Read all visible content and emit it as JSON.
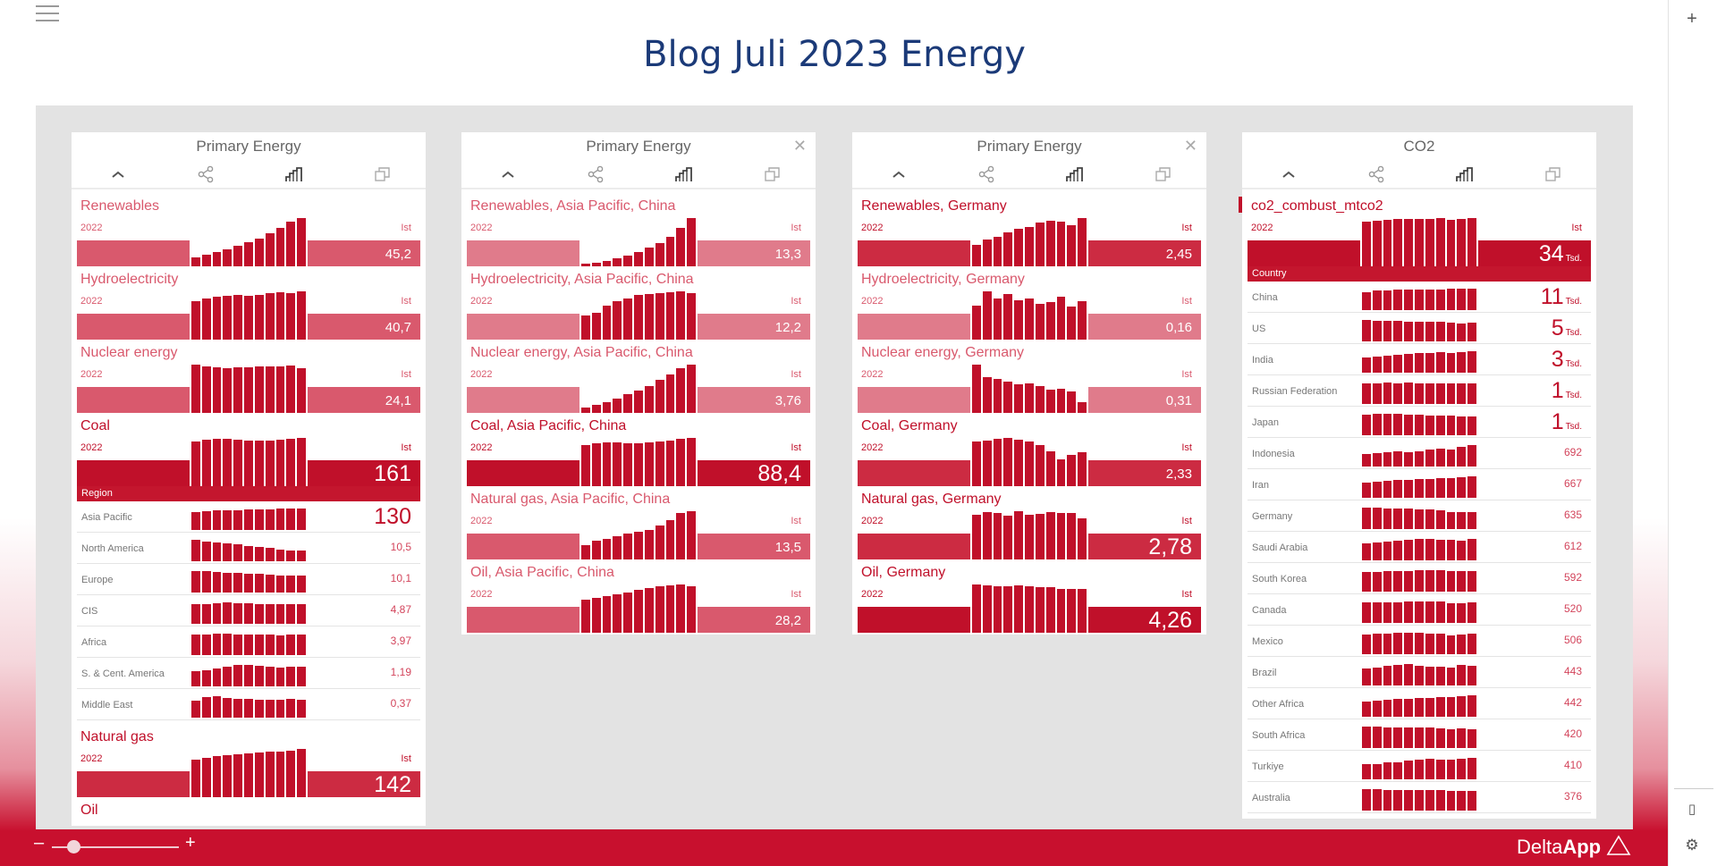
{
  "app": {
    "title": "Blog Juli 2023 Energy",
    "logo_light": "Delta",
    "logo_bold": "App",
    "zoom_minus": "–",
    "zoom_plus": "+",
    "zoom_level": 0.17,
    "rail_add": "+",
    "rail_panel": "▯",
    "rail_settings": "⚙"
  },
  "colors": {
    "light": "#d9596d",
    "mid": "#cc2b42",
    "strong": "#c0102a",
    "faint": "#e07b8b",
    "spark": "#c0102a"
  },
  "cards": [
    {
      "title": "Primary Energy",
      "closable": false,
      "kpis": [
        {
          "label": "Renewables",
          "year": "2022",
          "ist": "Ist",
          "value": "45,2",
          "big": false,
          "tone": "light",
          "spark": [
            0.18,
            0.25,
            0.3,
            0.35,
            0.42,
            0.5,
            0.58,
            0.68,
            0.8,
            0.92,
            1.0
          ]
        },
        {
          "label": "Hydroelectricity",
          "year": "2022",
          "ist": "Ist",
          "value": "40,7",
          "big": false,
          "tone": "light",
          "spark": [
            0.8,
            0.85,
            0.88,
            0.9,
            0.92,
            0.9,
            0.93,
            0.96,
            0.98,
            0.97,
            1.0
          ]
        },
        {
          "label": "Nuclear energy",
          "year": "2022",
          "ist": "Ist",
          "value": "24,1",
          "big": false,
          "tone": "light",
          "spark": [
            1.0,
            0.96,
            0.94,
            0.93,
            0.94,
            0.94,
            0.96,
            0.97,
            0.96,
            0.98,
            0.92
          ]
        },
        {
          "label": "Coal",
          "year": "2022",
          "ist": "Ist",
          "value": "161",
          "big": true,
          "tone": "strong",
          "spark": [
            0.92,
            0.96,
            0.98,
            0.99,
            0.97,
            0.95,
            0.94,
            0.95,
            0.96,
            0.98,
            1.0
          ]
        }
      ],
      "section": "Region",
      "rows": [
        {
          "label": "Asia Pacific",
          "value": "130",
          "big": true,
          "spark": [
            0.85,
            0.88,
            0.9,
            0.92,
            0.93,
            0.94,
            0.95,
            0.97,
            0.98,
            0.99,
            1.0
          ]
        },
        {
          "label": "North America",
          "value": "10,5",
          "spark": [
            1.0,
            0.9,
            0.88,
            0.85,
            0.78,
            0.72,
            0.68,
            0.62,
            0.55,
            0.5,
            0.48
          ]
        },
        {
          "label": "Europe",
          "value": "10,1",
          "spark": [
            1.0,
            0.98,
            0.96,
            0.92,
            0.9,
            0.88,
            0.86,
            0.84,
            0.8,
            0.78,
            0.8
          ]
        },
        {
          "label": "CIS",
          "value": "4,87",
          "spark": [
            0.9,
            0.92,
            0.95,
            1.0,
            0.96,
            0.94,
            0.93,
            0.9,
            0.92,
            0.93,
            0.91
          ]
        },
        {
          "label": "Africa",
          "value": "3,97",
          "spark": [
            0.95,
            0.96,
            0.98,
            1.0,
            0.97,
            0.96,
            0.95,
            0.94,
            0.93,
            0.95,
            0.94
          ]
        },
        {
          "label": "S. & Cent. America",
          "value": "1,19",
          "spark": [
            0.7,
            0.75,
            0.85,
            0.92,
            0.98,
            1.0,
            0.95,
            0.9,
            0.88,
            0.92,
            0.9
          ]
        },
        {
          "label": "Middle East",
          "value": "0,37",
          "spark": [
            0.8,
            0.95,
            1.0,
            0.9,
            0.88,
            0.86,
            0.85,
            0.84,
            0.82,
            0.86,
            0.85
          ]
        }
      ],
      "kpis_after": [
        {
          "label": "Natural gas",
          "year": "2022",
          "ist": "Ist",
          "value": "142",
          "big": true,
          "tone": "mid",
          "spark": [
            0.78,
            0.82,
            0.85,
            0.87,
            0.89,
            0.9,
            0.92,
            0.94,
            0.95,
            0.97,
            1.0
          ]
        },
        {
          "label": "Oil",
          "year": "",
          "ist": "",
          "value": "",
          "big": false,
          "tone": "mid",
          "spark": []
        }
      ]
    },
    {
      "title": "Primary Energy",
      "closable": true,
      "kpis": [
        {
          "label": "Renewables, Asia Pacific, China",
          "year": "2022",
          "ist": "Ist",
          "value": "13,3",
          "big": false,
          "tone": "faint",
          "spark": [
            0.05,
            0.08,
            0.12,
            0.16,
            0.22,
            0.3,
            0.38,
            0.48,
            0.62,
            0.8,
            1.0
          ]
        },
        {
          "label": "Hydroelectricity, Asia Pacific, China",
          "year": "2022",
          "ist": "Ist",
          "value": "12,2",
          "big": false,
          "tone": "faint",
          "spark": [
            0.5,
            0.56,
            0.7,
            0.8,
            0.86,
            0.92,
            0.95,
            0.97,
            0.98,
            1.0,
            0.97
          ]
        },
        {
          "label": "Nuclear energy, Asia Pacific, China",
          "year": "2022",
          "ist": "Ist",
          "value": "3,76",
          "big": false,
          "tone": "faint",
          "spark": [
            0.12,
            0.16,
            0.22,
            0.3,
            0.38,
            0.46,
            0.56,
            0.68,
            0.8,
            0.92,
            1.0
          ]
        },
        {
          "label": "Coal, Asia Pacific, China",
          "year": "2022",
          "ist": "Ist",
          "value": "88,4",
          "big": true,
          "tone": "strong",
          "spark": [
            0.85,
            0.88,
            0.9,
            0.9,
            0.89,
            0.88,
            0.9,
            0.93,
            0.95,
            0.98,
            1.0
          ]
        },
        {
          "label": "Natural gas, Asia Pacific, China",
          "year": "2022",
          "ist": "Ist",
          "value": "13,5",
          "big": false,
          "tone": "light",
          "spark": [
            0.3,
            0.38,
            0.42,
            0.48,
            0.54,
            0.58,
            0.62,
            0.7,
            0.82,
            0.96,
            1.0
          ]
        },
        {
          "label": "Oil, Asia Pacific, China",
          "year": "2022",
          "ist": "Ist",
          "value": "28,2",
          "big": false,
          "tone": "light",
          "spark": [
            0.68,
            0.72,
            0.76,
            0.8,
            0.84,
            0.88,
            0.92,
            0.96,
            0.98,
            1.0,
            0.97
          ]
        }
      ]
    },
    {
      "title": "Primary Energy",
      "closable": true,
      "kpis": [
        {
          "label": "Renewables, Germany",
          "year": "2022",
          "ist": "Ist",
          "value": "2,45",
          "big": false,
          "tone": "mid",
          "spark": [
            0.45,
            0.55,
            0.62,
            0.7,
            0.78,
            0.82,
            0.9,
            0.95,
            0.92,
            0.85,
            1.0
          ]
        },
        {
          "label": "Hydroelectricity, Germany",
          "year": "2022",
          "ist": "Ist",
          "value": "0,16",
          "big": false,
          "tone": "faint",
          "spark": [
            0.7,
            1.0,
            0.85,
            0.95,
            0.82,
            0.85,
            0.75,
            0.78,
            0.88,
            0.68,
            0.8
          ]
        },
        {
          "label": "Nuclear energy, Germany",
          "year": "2022",
          "ist": "Ist",
          "value": "0,31",
          "big": false,
          "tone": "faint",
          "spark": [
            1.0,
            0.75,
            0.7,
            0.65,
            0.6,
            0.62,
            0.55,
            0.48,
            0.5,
            0.45,
            0.22
          ]
        },
        {
          "label": "Coal, Germany",
          "year": "2022",
          "ist": "Ist",
          "value": "2,33",
          "big": false,
          "tone": "mid",
          "spark": [
            0.92,
            0.95,
            0.98,
            1.0,
            0.96,
            0.92,
            0.86,
            0.72,
            0.55,
            0.64,
            0.7
          ]
        },
        {
          "label": "Natural gas, Germany",
          "year": "2022",
          "ist": "Ist",
          "value": "2,78",
          "big": true,
          "tone": "mid",
          "spark": [
            0.92,
            0.98,
            0.96,
            0.9,
            1.0,
            0.92,
            0.95,
            0.98,
            0.96,
            0.97,
            0.86
          ]
        },
        {
          "label": "Oil, Germany",
          "year": "2022",
          "ist": "Ist",
          "value": "4,26",
          "big": true,
          "tone": "strong",
          "spark": [
            1.0,
            0.98,
            0.97,
            0.96,
            0.98,
            0.96,
            0.95,
            0.94,
            0.9,
            0.9,
            0.91
          ]
        }
      ]
    },
    {
      "title": "CO2",
      "closable": false,
      "kpis": [
        {
          "label": "co2_combust_mtco2",
          "year": "2022",
          "ist": "Ist",
          "value": "34",
          "unit": "Tsd.",
          "big": true,
          "tone": "strong",
          "marker": true,
          "spark": [
            0.92,
            0.95,
            0.97,
            0.98,
            0.99,
            0.98,
            0.99,
            1.0,
            0.96,
            0.99,
            1.0
          ]
        }
      ],
      "section": "Country",
      "rows": [
        {
          "label": "China",
          "value": "11",
          "unit": "Tsd.",
          "big": true,
          "spark": [
            0.85,
            0.9,
            0.93,
            0.95,
            0.96,
            0.95,
            0.96,
            0.97,
            0.98,
            0.99,
            1.0
          ]
        },
        {
          "label": "US",
          "value": "5",
          "unit": "Tsd.",
          "big": true,
          "spark": [
            1.0,
            0.97,
            0.95,
            0.94,
            0.93,
            0.92,
            0.91,
            0.9,
            0.88,
            0.84,
            0.86
          ]
        },
        {
          "label": "India",
          "value": "3",
          "unit": "Tsd.",
          "big": true,
          "spark": [
            0.72,
            0.76,
            0.8,
            0.85,
            0.87,
            0.9,
            0.93,
            0.95,
            0.92,
            0.97,
            1.0
          ]
        },
        {
          "label": "Russian Federation",
          "value": "1",
          "unit": "Tsd.",
          "big": true,
          "spark": [
            0.95,
            0.96,
            0.98,
            0.97,
            1.0,
            0.97,
            0.96,
            0.95,
            0.96,
            0.97,
            0.96
          ]
        },
        {
          "label": "Japan",
          "value": "1",
          "unit": "Tsd.",
          "big": true,
          "spark": [
            0.95,
            0.98,
            1.0,
            0.99,
            0.96,
            0.94,
            0.93,
            0.92,
            0.9,
            0.88,
            0.89
          ]
        },
        {
          "label": "Indonesia",
          "value": "692",
          "spark": [
            0.6,
            0.62,
            0.65,
            0.7,
            0.68,
            0.72,
            0.8,
            0.82,
            0.8,
            0.9,
            1.0
          ]
        },
        {
          "label": "Iran",
          "value": "667",
          "spark": [
            0.72,
            0.75,
            0.8,
            0.82,
            0.85,
            0.86,
            0.88,
            0.9,
            0.92,
            0.95,
            1.0
          ]
        },
        {
          "label": "Germany",
          "value": "635",
          "spark": [
            1.0,
            0.98,
            0.97,
            0.96,
            0.95,
            0.92,
            0.9,
            0.86,
            0.78,
            0.8,
            0.8
          ]
        },
        {
          "label": "Saudi Arabia",
          "value": "612",
          "spark": [
            0.8,
            0.85,
            0.88,
            0.92,
            0.96,
            1.0,
            0.98,
            0.96,
            0.95,
            0.93,
            0.98
          ]
        },
        {
          "label": "South Korea",
          "value": "592",
          "spark": [
            0.9,
            0.92,
            0.94,
            0.95,
            0.96,
            0.98,
            1.0,
            0.99,
            0.94,
            0.95,
            0.96
          ]
        },
        {
          "label": "Canada",
          "value": "520",
          "spark": [
            0.94,
            0.96,
            0.97,
            0.96,
            0.98,
            1.0,
            0.98,
            0.99,
            0.9,
            0.92,
            0.94
          ]
        },
        {
          "label": "Mexico",
          "value": "506",
          "spark": [
            0.92,
            0.94,
            0.96,
            0.98,
            1.0,
            0.99,
            0.97,
            0.95,
            0.88,
            0.92,
            0.95
          ]
        },
        {
          "label": "Brazil",
          "value": "443",
          "spark": [
            0.8,
            0.85,
            0.9,
            0.95,
            1.0,
            0.92,
            0.88,
            0.86,
            0.85,
            0.94,
            0.9
          ]
        },
        {
          "label": "Other Africa",
          "value": "442",
          "spark": [
            0.72,
            0.76,
            0.8,
            0.82,
            0.85,
            0.86,
            0.88,
            0.9,
            0.92,
            0.96,
            1.0
          ]
        },
        {
          "label": "South Africa",
          "value": "420",
          "spark": [
            1.0,
            0.98,
            0.95,
            0.96,
            0.94,
            0.95,
            0.94,
            0.92,
            0.88,
            0.9,
            0.86
          ]
        },
        {
          "label": "Turkiye",
          "value": "410",
          "spark": [
            0.7,
            0.72,
            0.78,
            0.8,
            0.86,
            0.9,
            0.94,
            0.92,
            0.9,
            0.96,
            1.0
          ]
        },
        {
          "label": "Australia",
          "value": "376",
          "spark": [
            1.0,
            0.98,
            0.96,
            0.94,
            0.95,
            0.96,
            0.97,
            0.96,
            0.93,
            0.9,
            0.91
          ]
        }
      ]
    }
  ]
}
